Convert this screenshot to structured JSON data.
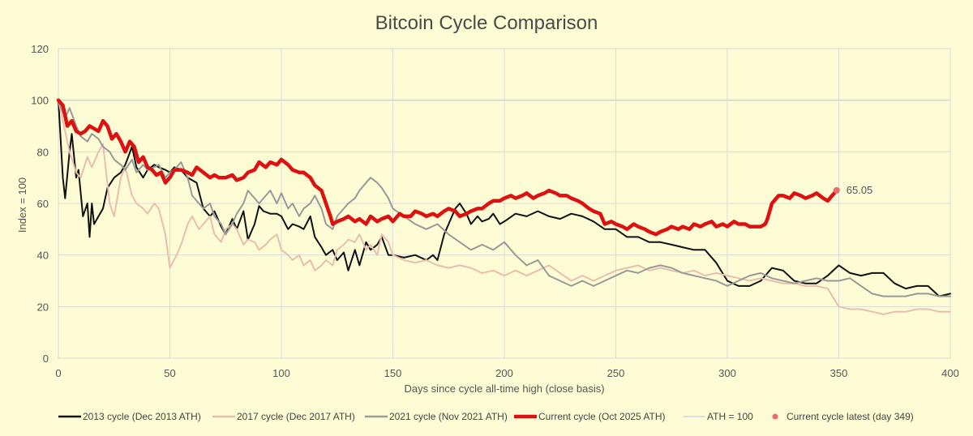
{
  "chart_data": {
    "type": "line",
    "title": "Bitcoin Cycle Comparison",
    "xlabel": "Days since cycle all-time high (close basis)",
    "ylabel": "Index = 100",
    "xlim": [
      0,
      400
    ],
    "ylim": [
      0,
      120
    ],
    "xticks": [
      "0",
      "50",
      "100",
      "150",
      "200",
      "250",
      "300",
      "350",
      "400"
    ],
    "yticks": [
      "0",
      "20",
      "40",
      "60",
      "80",
      "100",
      "120"
    ],
    "grid": true,
    "legend_position": "bottom",
    "reference_line": {
      "name": "ATH = 100",
      "value": 100,
      "color": "#c9d6ec"
    },
    "series": [
      {
        "name": "2013 cycle (Dec 2013 ATH)",
        "color": "#111111",
        "x": [
          0,
          2,
          3,
          5,
          6,
          8,
          9,
          11,
          13,
          14,
          15,
          16,
          18,
          20,
          22,
          25,
          28,
          30,
          33,
          35,
          38,
          40,
          43,
          45,
          48,
          50,
          52,
          55,
          58,
          62,
          65,
          68,
          70,
          73,
          75,
          78,
          80,
          83,
          85,
          88,
          90,
          92,
          95,
          98,
          100,
          103,
          105,
          108,
          110,
          113,
          115,
          118,
          120,
          123,
          125,
          128,
          130,
          133,
          135,
          138,
          140,
          143,
          145,
          148,
          150,
          155,
          160,
          165,
          168,
          170,
          173,
          175,
          178,
          180,
          183,
          185,
          188,
          190,
          193,
          195,
          198,
          200,
          205,
          210,
          215,
          220,
          225,
          230,
          235,
          240,
          245,
          250,
          255,
          260,
          265,
          270,
          275,
          280,
          285,
          290,
          295,
          300,
          305,
          310,
          315,
          320,
          325,
          330,
          335,
          340,
          345,
          350,
          355,
          360,
          365,
          370,
          375,
          380,
          385,
          390,
          395,
          400
        ],
        "y": [
          100,
          70,
          62,
          80,
          87,
          70,
          73,
          55,
          60,
          47,
          60,
          52,
          55,
          58,
          66,
          70,
          72,
          75,
          82,
          74,
          70,
          73,
          75,
          74,
          73,
          72,
          74,
          73,
          70,
          68,
          58,
          55,
          57,
          51,
          48,
          54,
          50,
          57,
          46,
          52,
          59,
          57,
          56,
          56,
          55,
          50,
          52,
          51,
          50,
          55,
          47,
          43,
          40,
          42,
          38,
          41,
          34,
          42,
          36,
          45,
          42,
          44,
          47,
          40,
          40,
          39,
          40,
          38,
          40,
          38,
          48,
          52,
          58,
          60,
          56,
          52,
          55,
          53,
          54,
          56,
          52,
          53,
          56,
          55,
          57,
          55,
          54,
          56,
          55,
          53,
          50,
          50,
          47,
          47,
          45,
          45,
          44,
          43,
          42,
          42,
          37,
          30,
          28,
          28,
          30,
          35,
          34,
          30,
          29,
          29,
          32,
          36,
          33,
          32,
          33,
          33,
          29,
          27,
          28,
          28,
          24,
          25
        ]
      },
      {
        "name": "2017 cycle (Dec 2017 ATH)",
        "color": "#e8bfae",
        "x": [
          0,
          3,
          5,
          8,
          10,
          13,
          15,
          18,
          20,
          23,
          25,
          28,
          30,
          33,
          35,
          38,
          40,
          43,
          45,
          48,
          50,
          53,
          55,
          58,
          60,
          63,
          65,
          68,
          70,
          73,
          75,
          78,
          80,
          83,
          85,
          88,
          90,
          93,
          95,
          98,
          100,
          103,
          105,
          108,
          110,
          113,
          115,
          118,
          120,
          123,
          125,
          128,
          130,
          133,
          135,
          138,
          140,
          143,
          145,
          148,
          150,
          155,
          160,
          165,
          170,
          175,
          180,
          185,
          190,
          195,
          200,
          205,
          210,
          215,
          220,
          225,
          230,
          235,
          240,
          245,
          250,
          255,
          260,
          265,
          270,
          275,
          280,
          285,
          290,
          295,
          300,
          305,
          310,
          315,
          320,
          325,
          330,
          335,
          340,
          345,
          350,
          355,
          360,
          365,
          370,
          375,
          380,
          385,
          390,
          395,
          400
        ],
        "y": [
          100,
          88,
          80,
          72,
          70,
          78,
          74,
          80,
          83,
          60,
          55,
          70,
          74,
          63,
          60,
          58,
          56,
          60,
          58,
          48,
          35,
          40,
          44,
          52,
          55,
          50,
          52,
          55,
          48,
          45,
          50,
          52,
          50,
          44,
          46,
          45,
          42,
          44,
          46,
          48,
          42,
          40,
          38,
          40,
          36,
          38,
          34,
          36,
          38,
          36,
          42,
          44,
          46,
          45,
          48,
          42,
          44,
          40,
          48,
          45,
          40,
          38,
          37,
          38,
          36,
          35,
          36,
          35,
          33,
          34,
          32,
          34,
          32,
          34,
          36,
          33,
          30,
          32,
          30,
          32,
          34,
          35,
          36,
          34,
          35,
          34,
          33,
          34,
          32,
          33,
          32,
          31,
          30,
          31,
          30,
          29,
          29,
          28,
          28,
          27,
          20,
          19,
          19,
          18,
          17,
          18,
          18,
          19,
          19,
          18,
          18
        ]
      },
      {
        "name": "2021 cycle (Nov 2021 ATH)",
        "color": "#999999",
        "x": [
          0,
          3,
          5,
          8,
          10,
          13,
          15,
          18,
          20,
          23,
          25,
          28,
          30,
          33,
          35,
          38,
          40,
          43,
          45,
          48,
          50,
          53,
          55,
          58,
          60,
          63,
          65,
          68,
          70,
          73,
          75,
          78,
          80,
          83,
          85,
          88,
          90,
          93,
          95,
          98,
          100,
          103,
          105,
          108,
          110,
          113,
          115,
          118,
          120,
          123,
          125,
          128,
          130,
          133,
          135,
          138,
          140,
          143,
          145,
          148,
          150,
          155,
          160,
          165,
          170,
          175,
          180,
          185,
          190,
          195,
          200,
          205,
          210,
          215,
          220,
          225,
          230,
          235,
          240,
          245,
          250,
          255,
          260,
          265,
          270,
          275,
          280,
          285,
          290,
          295,
          300,
          305,
          310,
          315,
          320,
          325,
          330,
          335,
          340,
          345,
          350,
          355,
          360,
          365,
          370,
          375,
          380,
          385,
          390,
          395,
          400
        ],
        "y": [
          100,
          93,
          97,
          90,
          86,
          84,
          87,
          85,
          82,
          80,
          77,
          75,
          73,
          77,
          72,
          75,
          73,
          74,
          75,
          70,
          72,
          74,
          76,
          70,
          63,
          60,
          58,
          60,
          55,
          52,
          48,
          52,
          56,
          60,
          65,
          62,
          60,
          63,
          65,
          60,
          64,
          58,
          60,
          55,
          58,
          60,
          63,
          58,
          52,
          50,
          55,
          58,
          60,
          62,
          65,
          68,
          70,
          68,
          66,
          62,
          58,
          55,
          52,
          50,
          52,
          48,
          45,
          42,
          44,
          42,
          45,
          40,
          36,
          38,
          32,
          30,
          28,
          30,
          28,
          30,
          32,
          34,
          33,
          35,
          36,
          35,
          33,
          32,
          31,
          30,
          28,
          30,
          32,
          33,
          31,
          30,
          29,
          30,
          31,
          30,
          30,
          31,
          28,
          25,
          24,
          24,
          24,
          25,
          25,
          24,
          24
        ]
      },
      {
        "name": "Current cycle (Oct 2025 ATH)",
        "color": "#dd1111",
        "x": [
          0,
          2,
          4,
          6,
          8,
          10,
          12,
          14,
          16,
          18,
          20,
          22,
          24,
          26,
          28,
          30,
          32,
          34,
          36,
          38,
          40,
          42,
          44,
          46,
          48,
          50,
          52,
          55,
          58,
          60,
          62,
          65,
          68,
          70,
          72,
          75,
          78,
          80,
          83,
          85,
          88,
          90,
          93,
          95,
          98,
          100,
          103,
          105,
          108,
          110,
          113,
          115,
          118,
          120,
          122,
          123,
          125,
          128,
          130,
          133,
          135,
          138,
          140,
          143,
          145,
          148,
          150,
          153,
          155,
          158,
          160,
          163,
          165,
          168,
          170,
          173,
          175,
          178,
          180,
          183,
          185,
          188,
          190,
          193,
          195,
          198,
          200,
          203,
          205,
          208,
          210,
          213,
          215,
          218,
          220,
          223,
          225,
          228,
          230,
          233,
          235,
          238,
          240,
          243,
          245,
          248,
          250,
          253,
          255,
          258,
          260,
          263,
          265,
          268,
          270,
          273,
          275,
          278,
          280,
          283,
          285,
          288,
          290,
          293,
          295,
          298,
          300,
          303,
          305,
          308,
          310,
          313,
          315,
          317,
          318,
          320,
          323,
          325,
          328,
          330,
          333,
          335,
          338,
          340,
          343,
          345,
          347,
          349
        ],
        "y": [
          100,
          98,
          90,
          92,
          88,
          87,
          88,
          90,
          89,
          88,
          92,
          90,
          85,
          87,
          84,
          80,
          84,
          82,
          76,
          78,
          74,
          73,
          71,
          72,
          68,
          70,
          73,
          73,
          72,
          71,
          74,
          72,
          70,
          71,
          70,
          70,
          71,
          69,
          70,
          72,
          73,
          76,
          74,
          76,
          75,
          77,
          75,
          73,
          72,
          72,
          70,
          67,
          65,
          60,
          55,
          52,
          53,
          54,
          55,
          53,
          54,
          52,
          55,
          53,
          54,
          55,
          53,
          56,
          55,
          55,
          57,
          56,
          55,
          56,
          55,
          57,
          58,
          57,
          55,
          56,
          57,
          58,
          58,
          60,
          61,
          61,
          62,
          63,
          62,
          63,
          64,
          62,
          63,
          64,
          65,
          64,
          63,
          63,
          62,
          61,
          60,
          58,
          57,
          56,
          52,
          53,
          52,
          51,
          50,
          52,
          51,
          50,
          49,
          48,
          49,
          50,
          51,
          50,
          51,
          50,
          52,
          51,
          52,
          53,
          51,
          52,
          51,
          53,
          52,
          52,
          51,
          51,
          51,
          52,
          54,
          60,
          63,
          63,
          62,
          64,
          63,
          62,
          63,
          64,
          62,
          61,
          63,
          65.05
        ]
      }
    ],
    "latest_point": {
      "name": "Current cycle latest (day 349)",
      "x": 349,
      "y": 65.05,
      "label": "65.05",
      "color": "#ee6b6b"
    }
  }
}
